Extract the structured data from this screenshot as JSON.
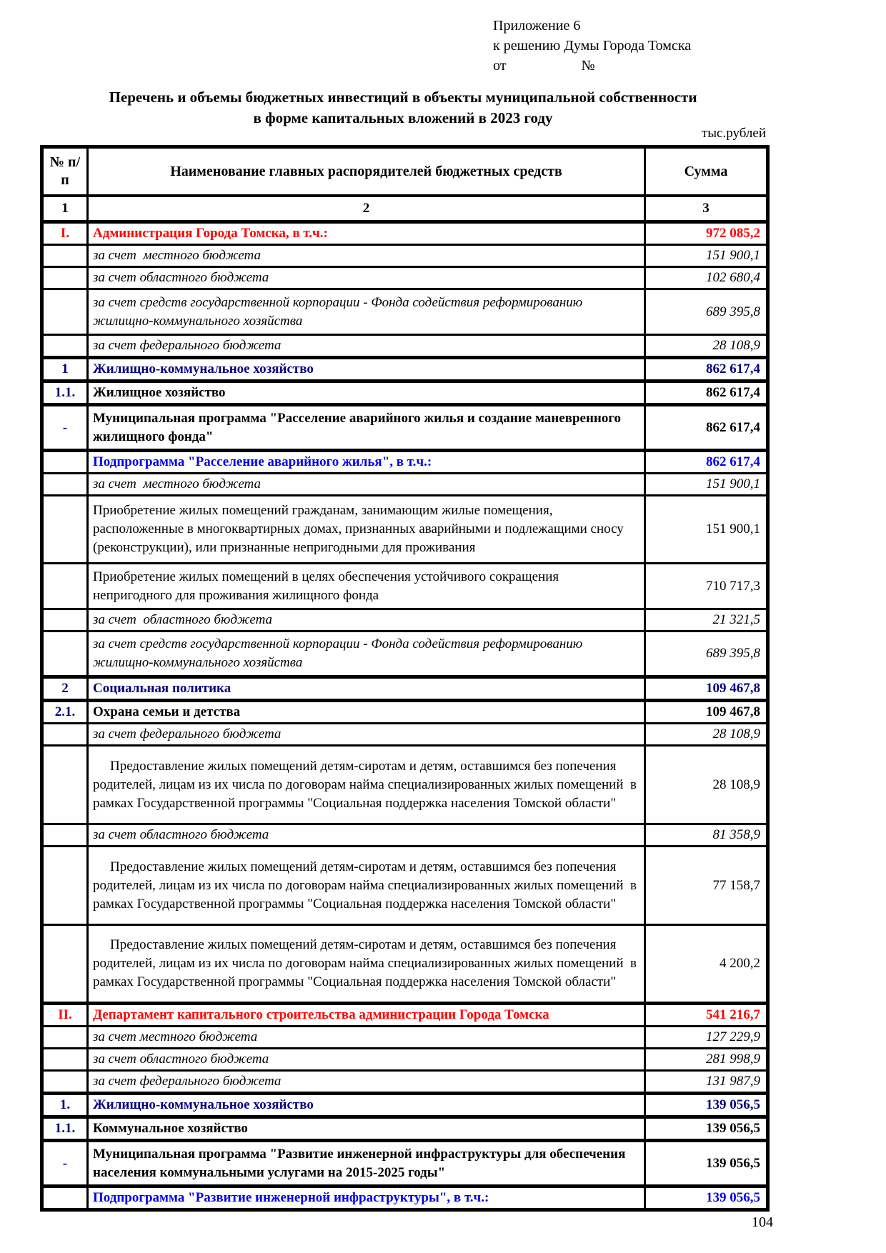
{
  "colors": {
    "red": "#ff0000",
    "navy": "#000080",
    "blue": "#0000ee",
    "text": "#000000",
    "background": "#ffffff"
  },
  "header": {
    "appendix_line1": "Приложение 6",
    "appendix_line2": "к решению Думы Города Томска",
    "from_label": "от",
    "number_label": "№",
    "title_line1": "Перечень и объемы бюджетных инвестиций в объекты муниципальной собственности",
    "title_line2": "в форме капитальных вложений в 2023 году",
    "units": "тыс.рублей"
  },
  "table": {
    "columns": [
      {
        "id": "num",
        "label": "№ п/п"
      },
      {
        "id": "name",
        "label": "Наименование главных распорядителей бюджетных средств"
      },
      {
        "id": "sum",
        "label": "Сумма"
      }
    ],
    "numbering_row": [
      "1",
      "2",
      "3"
    ],
    "rows": [
      {
        "num": "I.",
        "name": "Администрация Города Томска, в т.ч.:",
        "sum": "972 085,2",
        "style": "red",
        "lines": 1,
        "thick_top": true
      },
      {
        "num": "",
        "name": "за счет  местного бюджета",
        "sum": "151 900,1",
        "style": "italic",
        "lines": 1
      },
      {
        "num": "",
        "name": "за счет областного бюджета",
        "sum": "102 680,4",
        "style": "italic",
        "lines": 1
      },
      {
        "num": "",
        "name": "за счет средств государственной корпорации - Фонда содействия реформированию жилищно-коммунального хозяйства",
        "sum": "689 395,8",
        "style": "italic",
        "lines": 2
      },
      {
        "num": "",
        "name": "за счет федерального бюджета",
        "sum": "28 108,9",
        "style": "italic",
        "lines": 1
      },
      {
        "num": "1",
        "name": "Жилищно-коммунальное хозяйство",
        "sum": "862 617,4",
        "style": "section",
        "lines": 1,
        "thick_top": true
      },
      {
        "num": "1.1.",
        "name": "Жилищное хозяйство",
        "sum": "862 617,4",
        "style": "subsection",
        "lines": 1,
        "thick_top": true
      },
      {
        "num": "-",
        "name": "Муниципальная программа \"Расселение аварийного жилья и создание маневренного жилищного фонда\"",
        "sum": "862 617,4",
        "style": "program",
        "lines": 2,
        "thick_top": true
      },
      {
        "num": "",
        "name": "Подпрограмма \"Расселение аварийного жилья\", в т.ч.:",
        "sum": "862 617,4",
        "style": "subprogram",
        "lines": 1,
        "thick_top": true
      },
      {
        "num": "",
        "name": "за счет  местного бюджета",
        "sum": "151 900,1",
        "style": "italic",
        "lines": 1
      },
      {
        "num": "",
        "name": "Приобретение жилых помещений гражданам, занимающим жилые помещения, расположенные в многоквартирных домах, признанных аварийными и подлежащими сносу (реконструкции), или признанные непригодными для проживания",
        "sum": "151 900,1",
        "style": "detail",
        "lines": 3
      },
      {
        "num": "",
        "name": "Приобретение жилых помещений в целях обеспечения устойчивого сокращения непригодного для проживания жилищного фонда",
        "sum": "710 717,3",
        "style": "detail",
        "lines": 2
      },
      {
        "num": "",
        "name": "за счет  областного бюджета",
        "sum": "21 321,5",
        "style": "italic",
        "lines": 1
      },
      {
        "num": "",
        "name": "за счет средств государственной корпорации - Фонда содействия реформированию жилищно-коммунального хозяйства",
        "sum": "689 395,8",
        "style": "italic",
        "lines": 2
      },
      {
        "num": "2",
        "name": "Социальная политика",
        "sum": "109 467,8",
        "style": "section",
        "lines": 1,
        "thick_top": true
      },
      {
        "num": "2.1.",
        "name": "Охрана семьи и детства",
        "sum": "109 467,8",
        "style": "subsection",
        "lines": 1,
        "thick_top": true
      },
      {
        "num": "",
        "name": "за счет федерального бюджета",
        "sum": "28 108,9",
        "style": "italic",
        "lines": 1
      },
      {
        "num": "",
        "name": "Предоставление жилых помещений детям-сиротам и детям, оставшимся без попечения родителей, лицам из их числа по договорам найма специализированных жилых помещений  в рамках Государственной программы \"Социальная поддержка населения Томской области\"",
        "sum": "28 108,9",
        "style": "detail",
        "lines": 4,
        "indent": true
      },
      {
        "num": "",
        "name": "за счет областного бюджета",
        "sum": "81 358,9",
        "style": "italic",
        "lines": 1
      },
      {
        "num": "",
        "name": "Предоставление жилых помещений детям-сиротам и детям, оставшимся без попечения родителей, лицам из их числа по договорам найма специализированных жилых помещений  в рамках Государственной программы \"Социальная поддержка населения Томской области\"",
        "sum": "77 158,7",
        "style": "detail",
        "lines": 4,
        "indent": true
      },
      {
        "num": "",
        "name": "Предоставление жилых помещений детям-сиротам и детям, оставшимся без попечения родителей, лицам из их числа по договорам найма специализированных жилых помещений  в рамках Государственной программы \"Социальная поддержка населения Томской области\"",
        "sum": "4 200,2",
        "style": "detail",
        "lines": 4,
        "indent": true
      },
      {
        "num": "II.",
        "name": "Департамент капитального строительства администрации Города Томска",
        "sum": "541 216,7",
        "style": "red",
        "lines": 1,
        "thick_top": true
      },
      {
        "num": "",
        "name": "за счет местного бюджета",
        "sum": "127 229,9",
        "style": "italic",
        "lines": 1
      },
      {
        "num": "",
        "name": "за счет областного бюджета",
        "sum": "281 998,9",
        "style": "italic",
        "lines": 1
      },
      {
        "num": "",
        "name": "за счет федерального бюджета",
        "sum": "131 987,9",
        "style": "italic",
        "lines": 1
      },
      {
        "num": "1.",
        "name": "Жилищно-коммунальное хозяйство",
        "sum": "139 056,5",
        "style": "section",
        "lines": 1,
        "thick_top": true
      },
      {
        "num": "1.1.",
        "name": "Коммунальное хозяйство",
        "sum": "139 056,5",
        "style": "subsection",
        "lines": 1,
        "thick_top": true
      },
      {
        "num": "-",
        "name": "Муниципальная программа \"Развитие инженерной инфраструктуры для обеспечения населения коммунальными услугами на 2015-2025 годы\"",
        "sum": "139 056,5",
        "style": "program",
        "lines": 2,
        "thick_top": true
      },
      {
        "num": "",
        "name": "Подпрограмма \"Развитие инженерной инфраструктуры\", в т.ч.:",
        "sum": "139 056,5",
        "style": "subprogram",
        "lines": 1,
        "thick_top": true
      }
    ]
  },
  "footer": {
    "page_number": "104"
  }
}
